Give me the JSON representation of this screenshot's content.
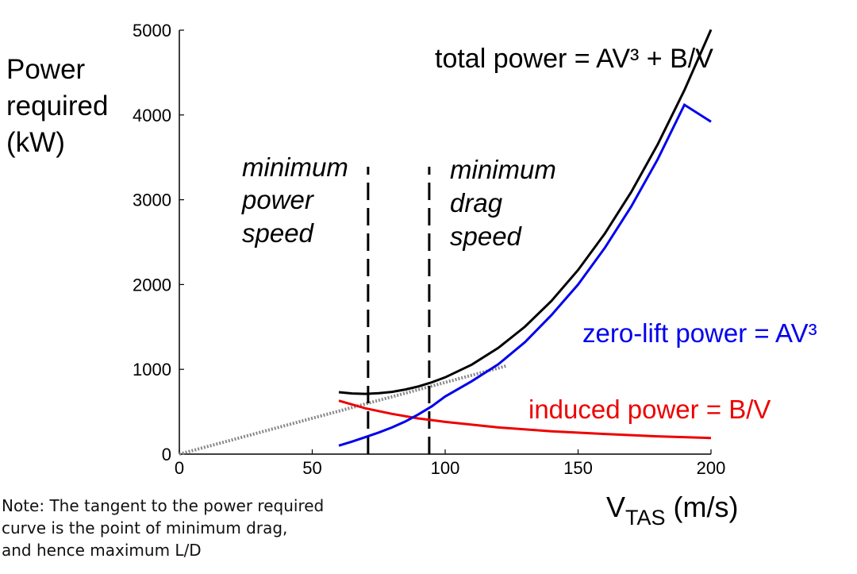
{
  "chart_data": {
    "type": "line",
    "title": "",
    "ylabel": [
      "Power",
      "required",
      "(kW)"
    ],
    "xlabel": {
      "main": "V",
      "sub": "TAS",
      "unit": " (m/s)"
    },
    "xlim": [
      0,
      200
    ],
    "ylim": [
      0,
      5000
    ],
    "xticks": [
      0,
      50,
      100,
      150,
      200
    ],
    "yticks": [
      0,
      1000,
      2000,
      3000,
      4000,
      5000
    ],
    "grid": false,
    "colors": {
      "total": "#000000",
      "zero_lift": "#0000ee",
      "induced": "#ee0000",
      "tangent": "#888888",
      "axis": "#000000"
    },
    "series": [
      {
        "key": "total",
        "x": [
          60,
          65,
          70,
          75,
          80,
          85,
          90,
          95,
          100,
          110,
          120,
          130,
          140,
          150,
          160,
          170,
          180,
          190,
          200
        ],
        "y": [
          730,
          715,
          711,
          718,
          734,
          762,
          799,
          847,
          905,
          1055,
          1253,
          1503,
          1807,
          2171,
          2598,
          3092,
          3655,
          4292,
          5006
        ]
      },
      {
        "key": "zero_lift",
        "x": [
          60,
          65,
          70,
          75,
          80,
          85,
          90,
          95,
          100,
          110,
          120,
          130,
          140,
          150,
          160,
          170,
          180,
          190,
          200
        ],
        "y": [
          100,
          148,
          200,
          255,
          315,
          385,
          470,
          565,
          680,
          860,
          1060,
          1320,
          1640,
          2000,
          2430,
          2920,
          3480,
          4120,
          3920
        ]
      },
      {
        "key": "induced",
        "x": [
          60,
          70,
          80,
          90,
          94,
          100,
          120,
          140,
          160,
          180,
          200
        ],
        "y": [
          630,
          540,
          475,
          420,
          405,
          380,
          315,
          270,
          238,
          210,
          190
        ]
      },
      {
        "key": "tangent",
        "x": [
          0,
          123
        ],
        "y": [
          0,
          1040
        ]
      }
    ],
    "vlines": [
      {
        "x": 71,
        "y_from": 0,
        "y_to": 3390
      },
      {
        "x": 94,
        "y_from": 0,
        "y_to": 3390
      }
    ],
    "annotations": {
      "total": "total power = AV³ + B/V",
      "min_power": [
        "minimum",
        "power",
        "speed"
      ],
      "min_drag": [
        "minimum",
        "drag",
        "speed"
      ],
      "zero_lift": "zero-lift power = AV³",
      "induced": "induced power = B/V"
    }
  },
  "note": [
    "Note: The tangent to the power required",
    "curve is the point of minimum drag,",
    "and hence maximum L/D"
  ]
}
